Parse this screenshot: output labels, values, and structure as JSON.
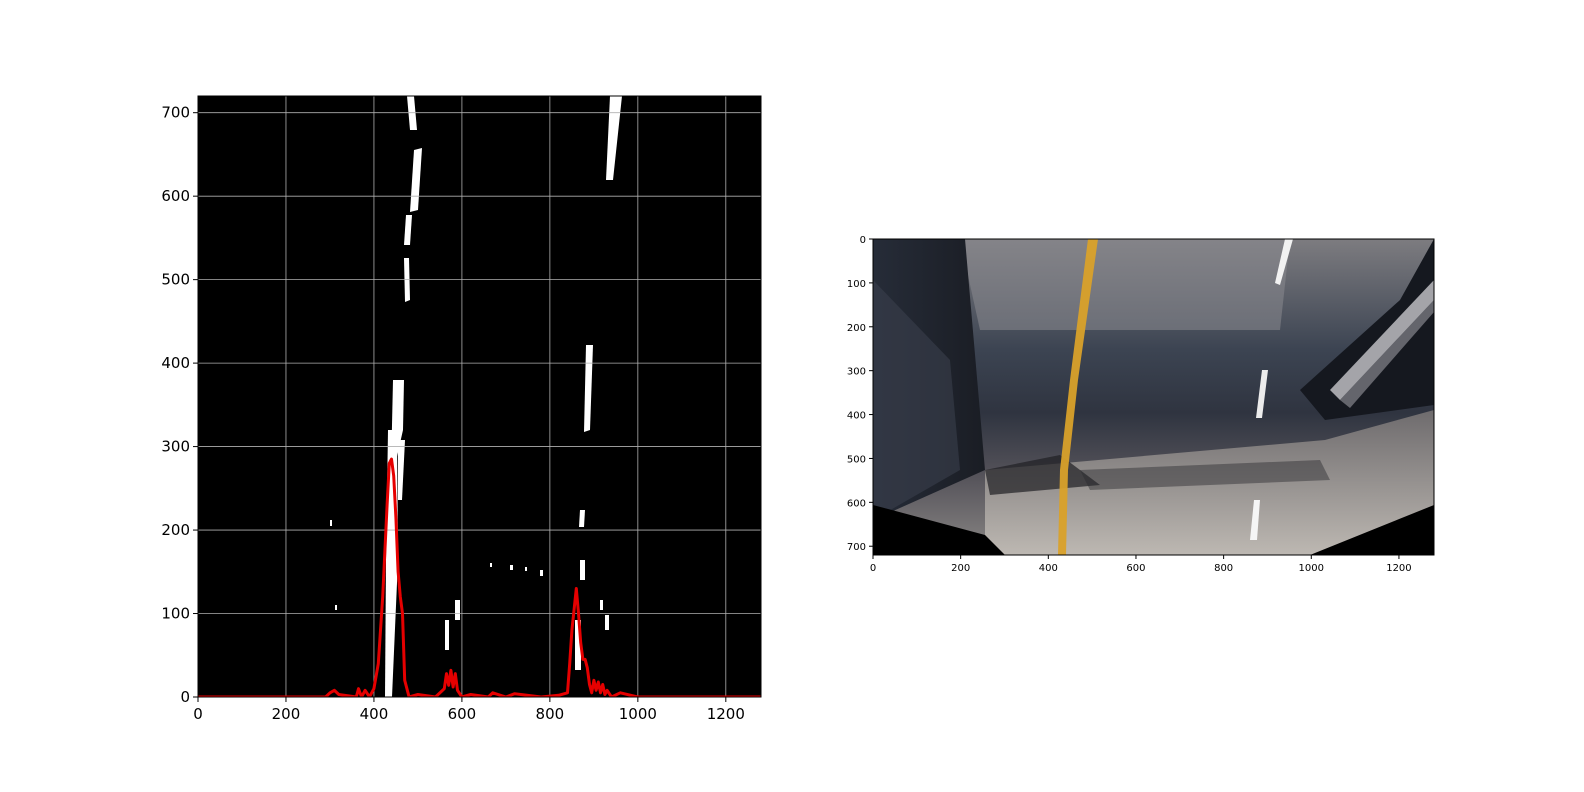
{
  "chart_data": [
    {
      "type": "line",
      "panel": "left",
      "background": "binary lane-pixel mask (white on black)",
      "x_ticks": [
        0,
        200,
        400,
        600,
        800,
        1000,
        1200
      ],
      "y_ticks": [
        0,
        100,
        200,
        300,
        400,
        500,
        600,
        700
      ],
      "xlim": [
        0,
        1280
      ],
      "ylim": [
        0,
        720
      ],
      "grid": true,
      "series": [
        {
          "color": "#e60000",
          "x": [
            0,
            290,
            300,
            310,
            320,
            360,
            365,
            372,
            380,
            390,
            400,
            410,
            420,
            430,
            435,
            440,
            445,
            450,
            455,
            460,
            465,
            470,
            480,
            500,
            540,
            560,
            565,
            570,
            575,
            580,
            585,
            590,
            600,
            620,
            660,
            670,
            700,
            720,
            780,
            820,
            840,
            845,
            850,
            855,
            860,
            865,
            870,
            875,
            880,
            885,
            890,
            895,
            900,
            905,
            910,
            915,
            920,
            925,
            930,
            940,
            960,
            1000,
            1280
          ],
          "y": [
            0,
            0,
            5,
            8,
            3,
            0,
            10,
            0,
            8,
            0,
            10,
            40,
            120,
            230,
            280,
            285,
            265,
            215,
            150,
            120,
            100,
            20,
            0,
            3,
            0,
            10,
            28,
            14,
            32,
            12,
            28,
            8,
            0,
            3,
            0,
            5,
            0,
            4,
            0,
            2,
            5,
            40,
            80,
            105,
            130,
            100,
            65,
            45,
            45,
            35,
            15,
            5,
            20,
            8,
            18,
            5,
            15,
            3,
            8,
            0,
            5,
            0,
            0
          ]
        }
      ]
    },
    {
      "type": "image",
      "panel": "right",
      "background": "perspective-warped road image (bird's-eye view) with yellow lane line and white dashed lane marks",
      "x_ticks": [
        0,
        200,
        400,
        600,
        800,
        1000,
        1200
      ],
      "y_ticks": [
        0,
        100,
        200,
        300,
        400,
        500,
        600,
        700
      ],
      "xlim": [
        0,
        1280
      ],
      "ylim": [
        720,
        0
      ],
      "grid": false
    }
  ],
  "colors": {
    "histogram_line": "#e60000",
    "grid": "#b0b0b0",
    "lane_yellow": "#d9a12a"
  }
}
